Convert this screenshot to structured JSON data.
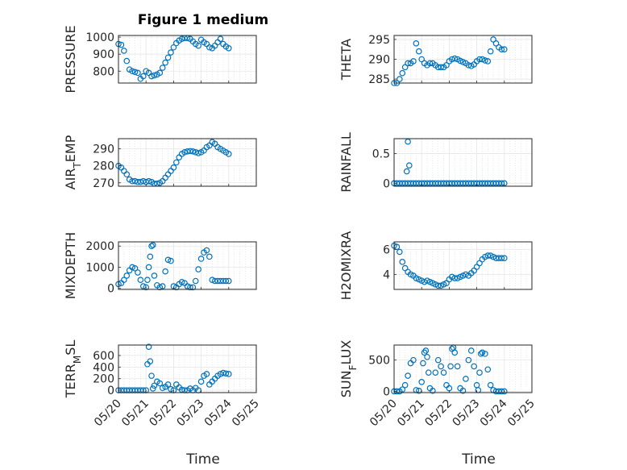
{
  "figure": {
    "title": "Figure 1 medium",
    "xlabel": "Time",
    "x_tick_labels": [
      "05/20",
      "05/21",
      "05/22",
      "05/23",
      "05/24",
      "05/25"
    ],
    "marker_color": "#0072BD"
  },
  "chart_data": [
    {
      "type": "scatter",
      "ylabel": "PRESSURE",
      "x_range_days_from_0520": [
        0,
        5
      ],
      "ylim": [
        730,
        1010
      ],
      "yticks": [
        800,
        900,
        1000
      ],
      "grid": true,
      "x": [
        0.0,
        0.1,
        0.2,
        0.3,
        0.4,
        0.5,
        0.6,
        0.7,
        0.8,
        0.9,
        1.0,
        1.1,
        1.2,
        1.3,
        1.4,
        1.5,
        1.6,
        1.7,
        1.8,
        1.9,
        2.0,
        2.1,
        2.2,
        2.3,
        2.4,
        2.5,
        2.6,
        2.7,
        2.8,
        2.9,
        3.0,
        3.1,
        3.2,
        3.3,
        3.4,
        3.5,
        3.6,
        3.7,
        3.8,
        3.9,
        4.0
      ],
      "y": [
        960,
        955,
        920,
        860,
        810,
        800,
        795,
        790,
        755,
        770,
        800,
        790,
        770,
        775,
        780,
        790,
        820,
        850,
        880,
        910,
        940,
        965,
        980,
        990,
        995,
        995,
        990,
        975,
        960,
        950,
        985,
        970,
        960,
        940,
        935,
        950,
        970,
        990,
        960,
        945,
        935
      ]
    },
    {
      "type": "scatter",
      "ylabel": "THETA",
      "ylim": [
        284,
        296
      ],
      "yticks": [
        285,
        290,
        295
      ],
      "grid": true,
      "x": [
        0.0,
        0.1,
        0.2,
        0.3,
        0.4,
        0.5,
        0.6,
        0.7,
        0.8,
        0.9,
        1.0,
        1.1,
        1.2,
        1.3,
        1.4,
        1.5,
        1.6,
        1.7,
        1.8,
        1.9,
        2.0,
        2.1,
        2.2,
        2.3,
        2.4,
        2.5,
        2.6,
        2.7,
        2.8,
        2.9,
        3.0,
        3.1,
        3.2,
        3.3,
        3.4,
        3.5,
        3.6,
        3.7,
        3.8,
        3.9,
        4.0
      ],
      "y": [
        284,
        284,
        285,
        286.5,
        288,
        289,
        289,
        289.5,
        294,
        292,
        290,
        289,
        288.5,
        289,
        289,
        288.5,
        288,
        288,
        288,
        288.5,
        289.5,
        290,
        290.2,
        290,
        289.6,
        289.3,
        289,
        288.5,
        288.3,
        288.7,
        289.5,
        290,
        290,
        289.7,
        289.5,
        292,
        295,
        294,
        293,
        292.5,
        292.5
      ]
    },
    {
      "type": "scatter",
      "ylabel": "AIR_TEMP",
      "ylim": [
        268,
        296
      ],
      "yticks": [
        270,
        280,
        290
      ],
      "grid": true,
      "x": [
        0.0,
        0.1,
        0.2,
        0.3,
        0.4,
        0.5,
        0.6,
        0.7,
        0.8,
        0.9,
        1.0,
        1.1,
        1.2,
        1.3,
        1.4,
        1.5,
        1.6,
        1.7,
        1.8,
        1.9,
        2.0,
        2.1,
        2.2,
        2.3,
        2.4,
        2.5,
        2.6,
        2.7,
        2.8,
        2.9,
        3.0,
        3.1,
        3.2,
        3.3,
        3.4,
        3.5,
        3.6,
        3.7,
        3.8,
        3.9,
        4.0
      ],
      "y": [
        280,
        279,
        277,
        275,
        272,
        271,
        271,
        270.5,
        270.5,
        271,
        270.5,
        271,
        270.5,
        269.5,
        269.5,
        270,
        271,
        273,
        275,
        277,
        279,
        282,
        285,
        287,
        288,
        288.5,
        288.7,
        288.5,
        288,
        287.5,
        288,
        289,
        291,
        292,
        294,
        293,
        291,
        290,
        289,
        288,
        287
      ]
    },
    {
      "type": "scatter",
      "ylabel": "RAINFALL",
      "ylim": [
        -0.05,
        0.75
      ],
      "yticks": [
        0,
        0.5
      ],
      "grid": true,
      "x": [
        0.0,
        0.1,
        0.2,
        0.3,
        0.4,
        0.5,
        0.6,
        0.7,
        0.8,
        0.9,
        1.0,
        1.1,
        1.2,
        1.3,
        1.4,
        1.5,
        1.6,
        1.7,
        1.8,
        1.9,
        2.0,
        2.1,
        2.2,
        2.3,
        2.4,
        2.5,
        2.6,
        2.7,
        2.8,
        2.9,
        3.0,
        3.1,
        3.2,
        3.3,
        3.4,
        3.5,
        3.6,
        3.7,
        3.8,
        3.9,
        4.0,
        0.46,
        0.5,
        0.55
      ],
      "y": [
        0,
        0,
        0,
        0,
        0,
        0,
        0,
        0,
        0,
        0,
        0,
        0,
        0,
        0,
        0,
        0,
        0,
        0,
        0,
        0,
        0,
        0,
        0,
        0,
        0,
        0,
        0,
        0,
        0,
        0,
        0,
        0,
        0,
        0,
        0,
        0,
        0,
        0,
        0,
        0,
        0,
        0.2,
        0.7,
        0.3
      ]
    },
    {
      "type": "scatter",
      "ylabel": "MIXDEPTH",
      "ylim": [
        -50,
        2200
      ],
      "yticks": [
        0,
        1000,
        2000
      ],
      "grid": true,
      "x": [
        0.0,
        0.1,
        0.2,
        0.3,
        0.4,
        0.5,
        0.6,
        0.7,
        0.8,
        0.9,
        1.0,
        1.05,
        1.1,
        1.15,
        1.2,
        1.25,
        1.3,
        1.4,
        1.5,
        1.6,
        1.7,
        1.8,
        1.9,
        2.0,
        2.1,
        2.2,
        2.3,
        2.4,
        2.5,
        2.6,
        2.7,
        2.8,
        2.9,
        3.0,
        3.1,
        3.2,
        3.3,
        3.4,
        3.5,
        3.6,
        3.7,
        3.8,
        3.9,
        4.0
      ],
      "y": [
        200,
        250,
        400,
        600,
        850,
        1000,
        950,
        750,
        400,
        100,
        50,
        400,
        1000,
        1500,
        2000,
        2050,
        600,
        150,
        50,
        100,
        800,
        1350,
        1300,
        100,
        50,
        200,
        300,
        250,
        100,
        50,
        50,
        350,
        900,
        1400,
        1700,
        1800,
        1500,
        400,
        350,
        350,
        350,
        350,
        350,
        350
      ]
    },
    {
      "type": "scatter",
      "ylabel": "H2OMIXRA",
      "ylim": [
        2.8,
        6.6
      ],
      "yticks": [
        4,
        6
      ],
      "grid": true,
      "x": [
        0.0,
        0.1,
        0.2,
        0.3,
        0.4,
        0.5,
        0.6,
        0.7,
        0.8,
        0.9,
        1.0,
        1.1,
        1.2,
        1.3,
        1.4,
        1.5,
        1.6,
        1.7,
        1.8,
        1.9,
        2.0,
        2.1,
        2.2,
        2.3,
        2.4,
        2.5,
        2.6,
        2.7,
        2.8,
        2.9,
        3.0,
        3.1,
        3.2,
        3.3,
        3.4,
        3.5,
        3.6,
        3.7,
        3.8,
        3.9,
        4.0
      ],
      "y": [
        6.3,
        6.2,
        5.8,
        5.0,
        4.5,
        4.2,
        4.0,
        3.9,
        3.7,
        3.6,
        3.5,
        3.4,
        3.5,
        3.4,
        3.3,
        3.2,
        3.1,
        3.1,
        3.2,
        3.3,
        3.6,
        3.8,
        3.7,
        3.7,
        3.8,
        3.9,
        4.0,
        3.9,
        4.1,
        4.3,
        4.6,
        4.9,
        5.2,
        5.4,
        5.5,
        5.5,
        5.4,
        5.3,
        5.3,
        5.3,
        5.3
      ]
    },
    {
      "type": "scatter",
      "ylabel": "TERR_MSL",
      "ylim": [
        -40,
        780
      ],
      "yticks": [
        0,
        200,
        400,
        600
      ],
      "grid": true,
      "x": [
        0.0,
        0.1,
        0.2,
        0.3,
        0.4,
        0.5,
        0.6,
        0.7,
        0.8,
        0.9,
        1.0,
        1.05,
        1.1,
        1.15,
        1.2,
        1.25,
        1.3,
        1.4,
        1.5,
        1.6,
        1.7,
        1.8,
        1.9,
        2.0,
        2.1,
        2.2,
        2.3,
        2.4,
        2.5,
        2.6,
        2.7,
        2.8,
        2.9,
        3.0,
        3.1,
        3.2,
        3.3,
        3.4,
        3.5,
        3.6,
        3.7,
        3.8,
        3.9,
        4.0
      ],
      "y": [
        0,
        0,
        0,
        0,
        0,
        0,
        0,
        0,
        0,
        0,
        0,
        450,
        750,
        500,
        250,
        30,
        80,
        150,
        120,
        40,
        60,
        100,
        20,
        0,
        100,
        50,
        10,
        0,
        0,
        30,
        0,
        40,
        0,
        150,
        250,
        280,
        100,
        150,
        200,
        250,
        280,
        300,
        290,
        280
      ]
    },
    {
      "type": "scatter",
      "ylabel": "SUN_FLUX",
      "ylim": [
        -20,
        740
      ],
      "yticks": [
        0,
        500
      ],
      "grid": true,
      "x": [
        0.0,
        0.1,
        0.2,
        0.3,
        0.4,
        0.5,
        0.6,
        0.7,
        0.8,
        0.9,
        1.0,
        1.05,
        1.1,
        1.15,
        1.2,
        1.25,
        1.3,
        1.4,
        1.5,
        1.6,
        1.7,
        1.8,
        1.9,
        2.0,
        2.05,
        2.1,
        2.15,
        2.2,
        2.3,
        2.4,
        2.5,
        2.6,
        2.7,
        2.8,
        2.9,
        3.0,
        3.05,
        3.1,
        3.15,
        3.2,
        3.3,
        3.4,
        3.5,
        3.6,
        3.7,
        3.8,
        3.9,
        4.0
      ],
      "y": [
        0,
        0,
        0,
        30,
        100,
        250,
        450,
        500,
        20,
        10,
        150,
        450,
        620,
        650,
        550,
        300,
        50,
        10,
        300,
        500,
        400,
        300,
        100,
        50,
        400,
        680,
        700,
        620,
        400,
        50,
        10,
        200,
        500,
        650,
        400,
        100,
        20,
        300,
        600,
        620,
        600,
        350,
        100,
        20,
        0,
        0,
        0,
        0
      ]
    }
  ]
}
